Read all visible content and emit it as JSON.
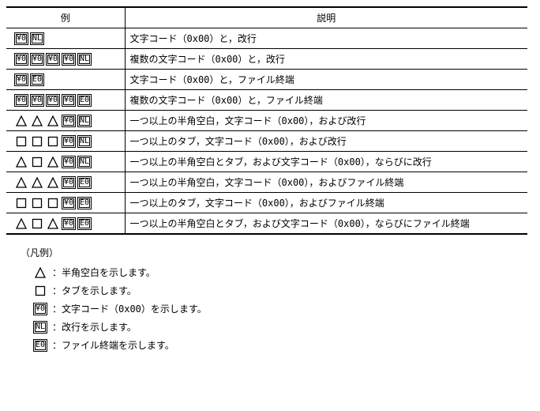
{
  "table": {
    "headers": {
      "example": "例",
      "description": "説明"
    },
    "border_color": "#000000",
    "background": "#ffffff",
    "symbols": {
      "Y0": "¥0",
      "NL": "NL",
      "E0": "E0"
    },
    "rows": [
      {
        "pattern": [
          "Y0",
          "NL"
        ],
        "desc": "文字コード（0x00）と，改行"
      },
      {
        "pattern": [
          "Y0",
          "Y0",
          "Y0",
          "Y0",
          "NL"
        ],
        "desc": "複数の文字コード（0x00）と，改行"
      },
      {
        "pattern": [
          "Y0",
          "E0"
        ],
        "desc": "文字コード（0x00）と，ファイル終端"
      },
      {
        "pattern": [
          "Y0",
          "Y0",
          "Y0",
          "Y0",
          "E0"
        ],
        "desc": "複数の文字コード（0x00）と，ファイル終端"
      },
      {
        "pattern": [
          "TRI",
          "TRI",
          "TRI",
          "Y0",
          "NL"
        ],
        "desc": "一つ以上の半角空白，文字コード（0x00），および改行"
      },
      {
        "pattern": [
          "SQ",
          "SQ",
          "SQ",
          "Y0",
          "NL"
        ],
        "desc": "一つ以上のタブ，文字コード（0x00），および改行"
      },
      {
        "pattern": [
          "TRI",
          "SQ",
          "TRI",
          "Y0",
          "NL"
        ],
        "desc": "一つ以上の半角空白とタブ，および文字コード（0x00），ならびに改行"
      },
      {
        "pattern": [
          "TRI",
          "TRI",
          "TRI",
          "Y0",
          "E0"
        ],
        "desc": "一つ以上の半角空白，文字コード（0x00），およびファイル終端"
      },
      {
        "pattern": [
          "SQ",
          "SQ",
          "SQ",
          "Y0",
          "E0"
        ],
        "desc": "一つ以上のタブ，文字コード（0x00），およびファイル終端"
      },
      {
        "pattern": [
          "TRI",
          "SQ",
          "TRI",
          "Y0",
          "E0"
        ],
        "desc": "一つ以上の半角空白とタブ，および文字コード（0x00），ならびにファイル終端"
      }
    ]
  },
  "legend": {
    "title": "（凡例）",
    "items": [
      {
        "sym": "TRI",
        "text": "：半角空白を示します。"
      },
      {
        "sym": "SQ",
        "text": "：タブを示します。"
      },
      {
        "sym": "Y0",
        "text": "：文字コード（0x00）を示します。"
      },
      {
        "sym": "NL",
        "text": "：改行を示します。"
      },
      {
        "sym": "E0",
        "text": "：ファイル終端を示します。"
      }
    ]
  }
}
